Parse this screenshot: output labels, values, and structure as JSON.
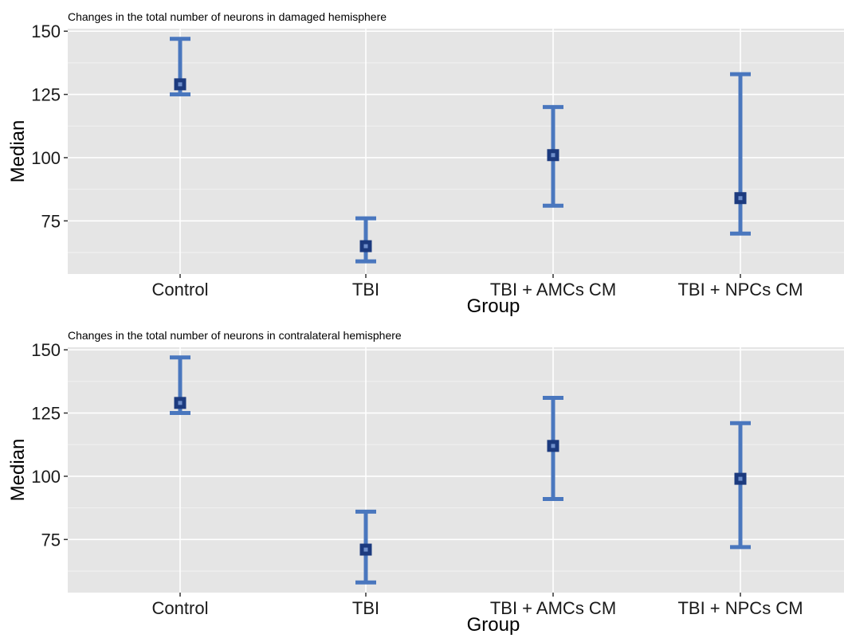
{
  "chart_data": [
    {
      "type": "errorbar",
      "title": "Changes in the total number of neurons in damaged hemisphere",
      "xlabel": "Group",
      "ylabel": "Median",
      "categories": [
        "Control",
        "TBI",
        "TBI + AMCs CM",
        "TBI + NPCs CM"
      ],
      "median": [
        129,
        65,
        101,
        84
      ],
      "lower": [
        125,
        59,
        81,
        70
      ],
      "upper": [
        147,
        76,
        120,
        133
      ],
      "y_ticks": [
        75,
        100,
        125,
        150
      ],
      "y_tick_labels": [
        "75",
        "100",
        "125",
        "150"
      ],
      "ylim": [
        54,
        151
      ],
      "grid": true,
      "legend": "none"
    },
    {
      "type": "errorbar",
      "title": "Changes in the total number of neurons in contralateral hemisphere",
      "xlabel": "Group",
      "ylabel": "Median",
      "categories": [
        "Control",
        "TBI",
        "TBI + AMCs CM",
        "TBI + NPCs CM"
      ],
      "median": [
        129,
        71,
        112,
        99
      ],
      "lower": [
        125,
        58,
        91,
        72
      ],
      "upper": [
        147,
        86,
        131,
        121
      ],
      "y_ticks": [
        75,
        100,
        125,
        150
      ],
      "y_tick_labels": [
        "75",
        "100",
        "125",
        "150"
      ],
      "ylim": [
        54,
        151
      ],
      "grid": true,
      "legend": "none"
    }
  ],
  "colors": {
    "panel_background": "#e5e5e5",
    "grid_major": "#ffffff",
    "grid_minor": "#f2f2f2",
    "errorbar": "#4a77be",
    "point": "#1c3a7e",
    "point_center": "#6e8ecb",
    "axis_tick": "#333333"
  }
}
